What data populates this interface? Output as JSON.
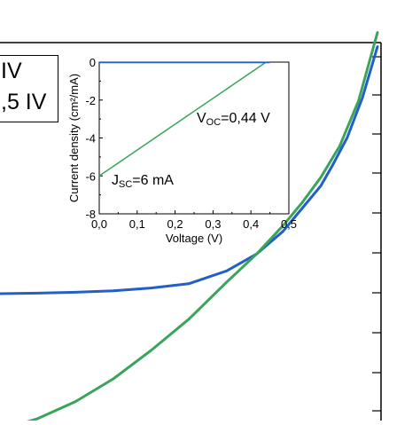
{
  "legend": {
    "line1": "IV",
    "line2": ",5 IV"
  },
  "chart_data": [
    {
      "type": "line",
      "title": "",
      "xlabel": "",
      "ylabel": "",
      "grid": false,
      "series": [
        {
          "color": "#2060c8",
          "x": [
            0.0,
            0.1,
            0.2,
            0.3,
            0.4,
            0.5,
            0.6,
            0.68,
            0.75,
            0.8,
            0.85,
            0.88,
            0.9,
            0.92,
            0.94,
            0.96,
            0.98,
            1.0
          ],
          "y": [
            0.0,
            0.002,
            0.005,
            0.01,
            0.02,
            0.035,
            0.08,
            0.14,
            0.22,
            0.3,
            0.38,
            0.45,
            0.5,
            0.55,
            0.62,
            0.69,
            0.78,
            0.87
          ]
        },
        {
          "color": "#3aa45c",
          "x": [
            0.0,
            0.1,
            0.2,
            0.3,
            0.4,
            0.5,
            0.6,
            0.68,
            0.75,
            0.8,
            0.85,
            0.9,
            0.95,
            1.0
          ],
          "y": [
            -0.48,
            -0.44,
            -0.38,
            -0.3,
            -0.2,
            -0.09,
            0.04,
            0.14,
            0.24,
            0.32,
            0.41,
            0.52,
            0.68,
            0.92
          ]
        }
      ]
    },
    {
      "type": "line",
      "title": "",
      "xlabel": "Voltage (V)",
      "ylabel": "Current density (cm²/mA)",
      "xlim": [
        0.0,
        0.5
      ],
      "ylim": [
        -8,
        0
      ],
      "xticks": [
        "0,0",
        "0,1",
        "0,2",
        "0,3",
        "0,4",
        "0,5"
      ],
      "yticks": [
        "0",
        "-2",
        "-4",
        "-6",
        "-8"
      ],
      "grid": false,
      "series": [
        {
          "color": "#3aa45c",
          "x": [
            0.0,
            0.44
          ],
          "y": [
            -6.0,
            0.0
          ]
        }
      ],
      "annotations": {
        "voc_main": "V",
        "voc_sub": "OC",
        "voc_value": "=0,44 V",
        "jsc_main": "J",
        "jsc_sub": "SC",
        "jsc_value": "=6 mA"
      }
    }
  ]
}
